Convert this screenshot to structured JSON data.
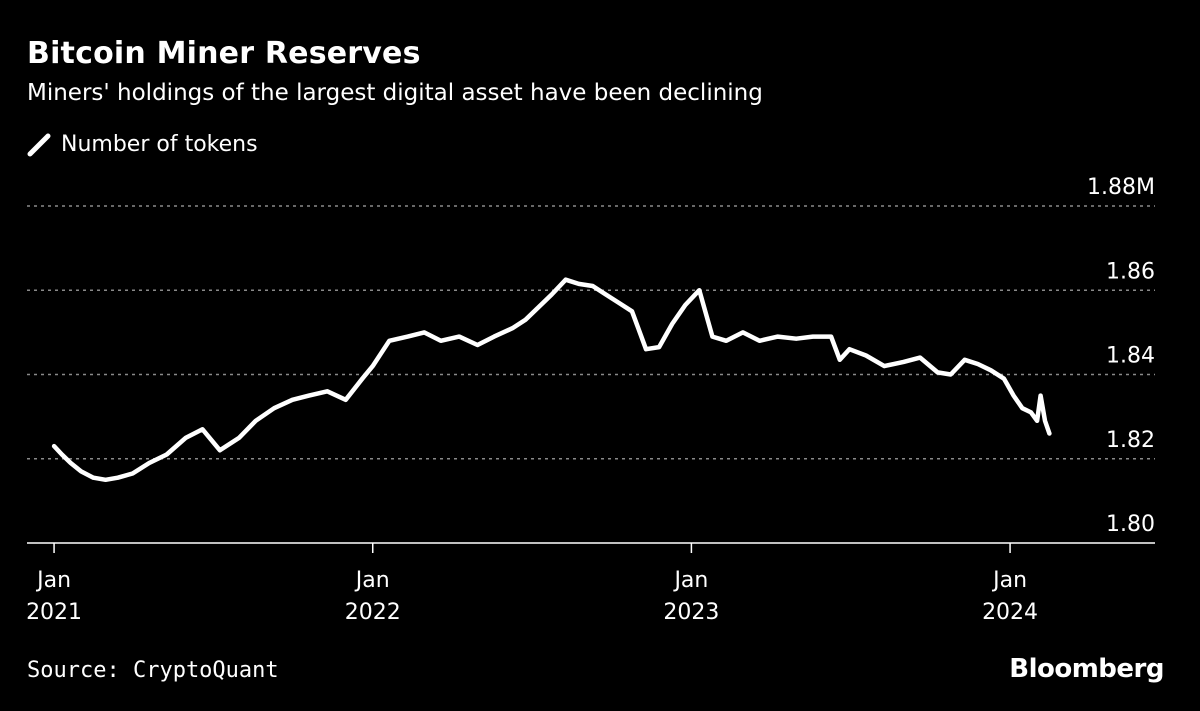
{
  "header": {
    "title": "Bitcoin Miner Reserves",
    "subtitle": "Miners' holdings of the largest digital asset have been declining"
  },
  "legend": {
    "label": "Number of tokens",
    "icon": "line-swatch-icon"
  },
  "footer": {
    "source": "Source: CryptoQuant",
    "brand": "Bloomberg"
  },
  "colors": {
    "background": "#000000",
    "line": "#ffffff",
    "grid": "#8a8a8a"
  },
  "chart_data": {
    "type": "line",
    "ylim": [
      1.8,
      1.88
    ],
    "y_ticks": [
      {
        "value": 1.88,
        "label": "1.88M"
      },
      {
        "value": 1.86,
        "label": "1.86"
      },
      {
        "value": 1.84,
        "label": "1.84"
      },
      {
        "value": 1.82,
        "label": "1.82"
      },
      {
        "value": 1.8,
        "label": "1.80"
      }
    ],
    "x_ticks": [
      {
        "value": "2021-01-01",
        "month": "Jan",
        "year": "2021"
      },
      {
        "value": "2022-01-01",
        "month": "Jan",
        "year": "2022"
      },
      {
        "value": "2023-01-01",
        "month": "Jan",
        "year": "2023"
      },
      {
        "value": "2024-01-01",
        "month": "Jan",
        "year": "2024"
      }
    ],
    "xlim": [
      "2020-12-01",
      "2024-06-15"
    ],
    "grid": "horizontal dotted",
    "series": [
      {
        "name": "Number of tokens",
        "x": [
          "2021-01-01",
          "2021-01-10",
          "2021-01-20",
          "2021-02-01",
          "2021-02-15",
          "2021-03-01",
          "2021-03-15",
          "2021-04-01",
          "2021-04-20",
          "2021-05-10",
          "2021-06-01",
          "2021-06-20",
          "2021-07-10",
          "2021-08-01",
          "2021-08-20",
          "2021-09-10",
          "2021-10-01",
          "2021-10-20",
          "2021-11-10",
          "2021-12-01",
          "2021-12-20",
          "2022-01-01",
          "2022-01-20",
          "2022-02-10",
          "2022-03-01",
          "2022-03-20",
          "2022-04-10",
          "2022-05-01",
          "2022-05-20",
          "2022-06-10",
          "2022-06-25",
          "2022-07-10",
          "2022-07-25",
          "2022-08-10",
          "2022-08-25",
          "2022-09-10",
          "2022-09-25",
          "2022-10-10",
          "2022-10-25",
          "2022-11-10",
          "2022-11-25",
          "2022-12-10",
          "2022-12-25",
          "2023-01-10",
          "2023-01-25",
          "2023-02-10",
          "2023-03-01",
          "2023-03-20",
          "2023-04-10",
          "2023-05-01",
          "2023-05-20",
          "2023-06-10",
          "2023-06-20",
          "2023-07-01",
          "2023-07-20",
          "2023-08-10",
          "2023-09-01",
          "2023-09-20",
          "2023-10-10",
          "2023-10-25",
          "2023-11-10",
          "2023-11-25",
          "2023-12-10",
          "2023-12-25",
          "2024-01-05",
          "2024-01-15",
          "2024-01-25",
          "2024-02-01",
          "2024-02-05",
          "2024-02-10",
          "2024-02-15"
        ],
        "values": [
          1.823,
          1.821,
          1.819,
          1.817,
          1.8155,
          1.815,
          1.8155,
          1.8165,
          1.819,
          1.821,
          1.825,
          1.827,
          1.822,
          1.825,
          1.829,
          1.832,
          1.834,
          1.835,
          1.836,
          1.834,
          1.839,
          1.842,
          1.848,
          1.849,
          1.85,
          1.848,
          1.849,
          1.847,
          1.849,
          1.851,
          1.853,
          1.856,
          1.859,
          1.8625,
          1.8615,
          1.861,
          1.859,
          1.857,
          1.855,
          1.846,
          1.8465,
          1.852,
          1.8565,
          1.86,
          1.849,
          1.848,
          1.85,
          1.848,
          1.849,
          1.8485,
          1.849,
          1.849,
          1.8435,
          1.846,
          1.8445,
          1.842,
          1.843,
          1.844,
          1.8405,
          1.84,
          1.8435,
          1.8425,
          1.841,
          1.839,
          1.835,
          1.832,
          1.831,
          1.829,
          1.835,
          1.829,
          1.826
        ]
      }
    ]
  }
}
